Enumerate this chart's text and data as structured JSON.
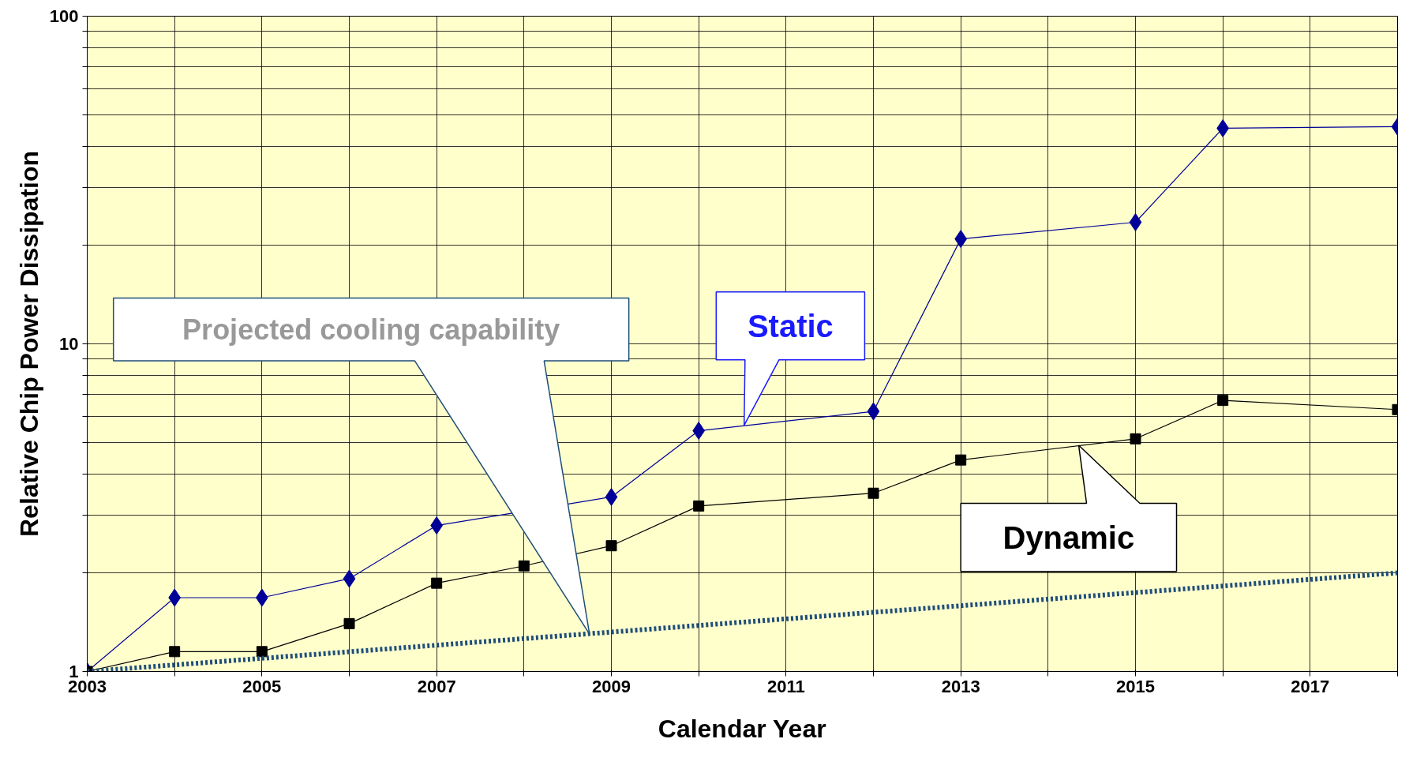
{
  "chart_data": {
    "type": "line",
    "xlabel": "Calendar Year",
    "ylabel": "Relative Chip Power Dissipation",
    "log": "y",
    "grid": true,
    "xlim": [
      2003,
      2018
    ],
    "ylim": [
      1,
      100
    ],
    "xticks": [
      2003,
      {
        "value": 2004,
        "label": null
      },
      2005,
      {
        "value": 2006,
        "label": null
      },
      2007,
      {
        "value": 2008,
        "label": null
      },
      2009,
      {
        "value": 2010,
        "label": null
      },
      2011,
      {
        "value": 2012,
        "label": null
      },
      2013,
      {
        "value": 2014,
        "label": null
      },
      2015,
      {
        "value": 2016,
        "label": null
      },
      2017,
      {
        "value": 2018,
        "label": null
      }
    ],
    "yticks": [
      1,
      {
        "value": 2,
        "label": null
      },
      {
        "value": 3,
        "label": null
      },
      {
        "value": 4,
        "label": null
      },
      {
        "value": 5,
        "label": null
      },
      {
        "value": 6,
        "label": null
      },
      {
        "value": 7,
        "label": null
      },
      {
        "value": 8,
        "label": null
      },
      {
        "value": 9,
        "label": null
      },
      10,
      {
        "value": 20,
        "label": null
      },
      {
        "value": 30,
        "label": null
      },
      {
        "value": 40,
        "label": null
      },
      {
        "value": 50,
        "label": null
      },
      {
        "value": 60,
        "label": null
      },
      {
        "value": 70,
        "label": null
      },
      {
        "value": 80,
        "label": null
      },
      {
        "value": 90,
        "label": null
      },
      100
    ],
    "series": [
      {
        "color": "#000099",
        "marker": "diamond",
        "line_style": "solid",
        "x": [
          2003,
          2004,
          2005,
          2006,
          2007,
          2009,
          2010,
          2012,
          2013,
          2015,
          2016,
          2018
        ],
        "values": [
          1,
          1.68,
          1.68,
          1.92,
          2.79,
          3.41,
          5.43,
          6.22,
          20.9,
          23.5,
          45.5,
          46.0
        ]
      },
      {
        "color": "#000000",
        "marker": "square",
        "line_style": "solid",
        "x": [
          2003,
          2004,
          2005,
          2006,
          2007,
          2008,
          2009,
          2010,
          2012,
          2013,
          2015,
          2016,
          2018
        ],
        "values": [
          1,
          1.15,
          1.15,
          1.4,
          1.86,
          2.1,
          2.42,
          3.2,
          3.5,
          4.42,
          5.13,
          6.72,
          6.3
        ]
      },
      {
        "color": "#1f4e79",
        "marker": "none",
        "line_style": "dotted",
        "x": [
          2003,
          2018
        ],
        "values": [
          1,
          2.0
        ]
      }
    ],
    "annotations": [
      "Projected cooling capability",
      {
        "text": "Static",
        "x": 2010.52,
        "y": 5.64
      },
      {
        "text": "Dynamic",
        "x": 2014.35,
        "y": 4.9
      }
    ]
  }
}
